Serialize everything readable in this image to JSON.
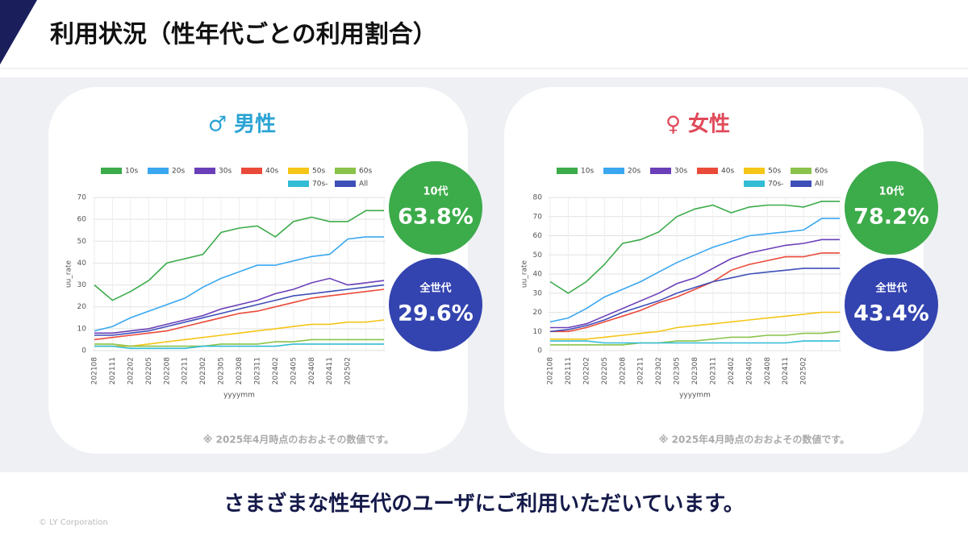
{
  "header": {
    "title": "利用状況（性年代ごとの利用割合）"
  },
  "footer": {
    "message": "さまざまな性年代のユーザにご利用いただいています。",
    "copyright": "© LY Corporation"
  },
  "chart_data": [
    {
      "type": "line",
      "title": "♂ 男性",
      "title_color": "#2aa3d4",
      "x_label": "yyyymm",
      "y_label": "uu_rate",
      "categories": [
        "202108",
        "202111",
        "202202",
        "202205",
        "202208",
        "202211",
        "202302",
        "202305",
        "202308",
        "202311",
        "202402",
        "202405",
        "202408",
        "202411",
        "202502",
        null,
        null
      ],
      "series": [
        {
          "name": "10s",
          "color": "#3cab4a",
          "values": [
            30,
            23,
            27,
            32,
            40,
            42,
            44,
            54,
            56,
            57,
            52,
            59,
            61,
            59,
            59,
            64,
            64
          ]
        },
        {
          "name": "20s",
          "color": "#3aa7f0",
          "values": [
            9,
            11,
            15,
            18,
            21,
            24,
            29,
            33,
            36,
            39,
            39,
            41,
            43,
            44,
            51,
            52,
            52
          ]
        },
        {
          "name": "30s",
          "color": "#6a3fb8",
          "values": [
            8,
            8,
            9,
            10,
            12,
            14,
            16,
            19,
            21,
            23,
            26,
            28,
            31,
            33,
            30,
            31,
            32
          ]
        },
        {
          "name": "40s",
          "color": "#ea4a3a",
          "values": [
            5,
            6,
            7,
            8,
            9,
            11,
            13,
            15,
            17,
            18,
            20,
            22,
            24,
            25,
            26,
            27,
            28
          ]
        },
        {
          "name": "50s",
          "color": "#f5c518",
          "values": [
            2,
            2,
            2,
            3,
            4,
            5,
            6,
            7,
            8,
            9,
            10,
            11,
            12,
            12,
            13,
            13,
            14
          ]
        },
        {
          "name": "60s",
          "color": "#8bc34a",
          "values": [
            3,
            3,
            2,
            2,
            2,
            2,
            2,
            3,
            3,
            3,
            4,
            4,
            5,
            5,
            5,
            5,
            5
          ]
        },
        {
          "name": "70s-",
          "color": "#32bcd6",
          "values": [
            2,
            2,
            1,
            1,
            1,
            1,
            2,
            2,
            2,
            2,
            2,
            3,
            3,
            3,
            3,
            3,
            3
          ]
        },
        {
          "name": "All",
          "color": "#3f4fb8",
          "values": [
            7,
            7,
            8,
            9,
            11,
            13,
            15,
            17,
            19,
            21,
            23,
            25,
            26,
            27,
            28,
            29,
            30
          ]
        }
      ],
      "ylim": [
        0,
        70
      ],
      "yticks": [
        0,
        10,
        20,
        30,
        40,
        50,
        60,
        70
      ],
      "grid": true,
      "annotations": [
        {
          "label": "10代",
          "text": "63.8%",
          "color": "#3cab4a"
        },
        {
          "label": "全世代",
          "text": "29.6%",
          "color": "#3344b0"
        }
      ],
      "note": "※ 2025年4月時点のおおよその数値です。"
    },
    {
      "type": "line",
      "title": "♀ 女性",
      "title_color": "#e04a5a",
      "x_label": "yyyymm",
      "y_label": "uu_rate",
      "categories": [
        "202108",
        "202111",
        "202202",
        "202205",
        "202208",
        "202211",
        "202302",
        "202305",
        "202308",
        "202311",
        "202402",
        "202405",
        "202408",
        "202411",
        "202502",
        null,
        null
      ],
      "series": [
        {
          "name": "10s",
          "color": "#3cab4a",
          "values": [
            36,
            30,
            36,
            45,
            56,
            58,
            62,
            70,
            74,
            76,
            72,
            75,
            76,
            76,
            75,
            78,
            78
          ]
        },
        {
          "name": "20s",
          "color": "#3aa7f0",
          "values": [
            15,
            17,
            22,
            28,
            32,
            36,
            41,
            46,
            50,
            54,
            57,
            60,
            61,
            62,
            63,
            69,
            69
          ]
        },
        {
          "name": "30s",
          "color": "#6a3fb8",
          "values": [
            12,
            12,
            14,
            18,
            22,
            26,
            30,
            35,
            38,
            43,
            48,
            51,
            53,
            55,
            56,
            58,
            58
          ]
        },
        {
          "name": "40s",
          "color": "#ea4a3a",
          "values": [
            10,
            10,
            12,
            15,
            18,
            21,
            25,
            28,
            32,
            36,
            42,
            45,
            47,
            49,
            49,
            51,
            51
          ]
        },
        {
          "name": "50s",
          "color": "#f5c518",
          "values": [
            6,
            6,
            6,
            7,
            8,
            9,
            10,
            12,
            13,
            14,
            15,
            16,
            17,
            18,
            19,
            20,
            20
          ]
        },
        {
          "name": "60s",
          "color": "#8bc34a",
          "values": [
            3,
            3,
            3,
            3,
            3,
            4,
            4,
            5,
            5,
            6,
            7,
            7,
            8,
            8,
            9,
            9,
            10
          ]
        },
        {
          "name": "70s-",
          "color": "#32bcd6",
          "values": [
            5,
            5,
            5,
            4,
            4,
            4,
            4,
            4,
            4,
            4,
            4,
            4,
            4,
            4,
            5,
            5,
            5
          ]
        },
        {
          "name": "All",
          "color": "#3f4fb8",
          "values": [
            10,
            11,
            13,
            16,
            20,
            23,
            26,
            30,
            33,
            36,
            38,
            40,
            41,
            42,
            43,
            43,
            43
          ]
        }
      ],
      "ylim": [
        0,
        80
      ],
      "yticks": [
        0,
        10,
        20,
        30,
        40,
        50,
        60,
        70,
        80
      ],
      "grid": true,
      "annotations": [
        {
          "label": "10代",
          "text": "78.2%",
          "color": "#3cab4a"
        },
        {
          "label": "全世代",
          "text": "43.4%",
          "color": "#3344b0"
        }
      ],
      "note": "※ 2025年4月時点のおおよその数値です。"
    }
  ]
}
